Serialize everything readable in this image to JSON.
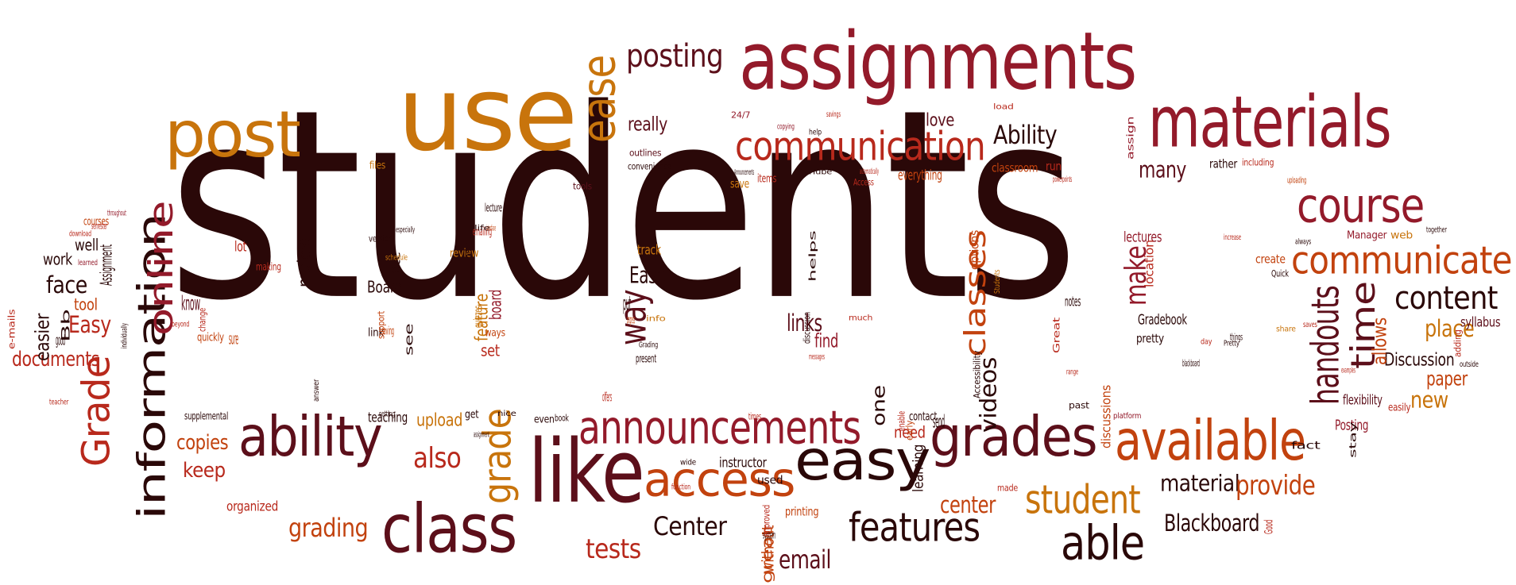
{
  "colors": {
    "dark": "#2a0808",
    "maroon": "#5c0f1a",
    "crimson": "#931a2a",
    "red": "#b8291c",
    "orange": "#c2420e",
    "amber": "#c8740c"
  },
  "words": [
    {
      "t": "students",
      "c": "#2a0808"
    },
    {
      "t": "assignments",
      "c": "#931a2a"
    },
    {
      "t": "use",
      "c": "#c8740c"
    },
    {
      "t": "post",
      "c": "#c8740c"
    },
    {
      "t": "materials",
      "c": "#931a2a"
    },
    {
      "t": "posting",
      "c": "#5c0f1a"
    },
    {
      "t": "ease",
      "c": "#c8740c"
    },
    {
      "t": "communication",
      "c": "#b8291c"
    },
    {
      "t": "course",
      "c": "#931a2a"
    },
    {
      "t": "communicate",
      "c": "#c2420e"
    },
    {
      "t": "content",
      "c": "#2a0808"
    },
    {
      "t": "like",
      "c": "#5c0f1a"
    },
    {
      "t": "class",
      "c": "#5c0f1a"
    },
    {
      "t": "ability",
      "c": "#5c0f1a"
    },
    {
      "t": "announcements",
      "c": "#931a2a"
    },
    {
      "t": "access",
      "c": "#c2420e"
    },
    {
      "t": "easy",
      "c": "#2a0808"
    },
    {
      "t": "grades",
      "c": "#5c0f1a"
    },
    {
      "t": "available",
      "c": "#c2420e"
    },
    {
      "t": "features",
      "c": "#2a0808"
    },
    {
      "t": "able",
      "c": "#2a0808"
    },
    {
      "t": "student",
      "c": "#c8740c"
    },
    {
      "t": "information",
      "c": "#2a0808"
    },
    {
      "t": "online",
      "c": "#931a2a"
    },
    {
      "t": "Grade",
      "c": "#b8291c"
    },
    {
      "t": "grade",
      "c": "#c8740c"
    },
    {
      "t": "handouts",
      "c": "#5c0f1a"
    },
    {
      "t": "time",
      "c": "#5c0f1a"
    },
    {
      "t": "Ability",
      "c": "#2a0808"
    },
    {
      "t": "really",
      "c": "#5c0f1a"
    },
    {
      "t": "many",
      "c": "#5c0f1a"
    },
    {
      "t": "love",
      "c": "#5c0f1a"
    },
    {
      "t": "face",
      "c": "#2a0808"
    },
    {
      "t": "Easy",
      "c": "#b8291c"
    },
    {
      "t": "documents",
      "c": "#b8291c"
    },
    {
      "t": "easier",
      "c": "#2a0808"
    },
    {
      "t": "also",
      "c": "#b8291c"
    },
    {
      "t": "copies",
      "c": "#c2420e"
    },
    {
      "t": "keep",
      "c": "#b8291c"
    },
    {
      "t": "upload",
      "c": "#c8740c"
    },
    {
      "t": "grading",
      "c": "#c2420e"
    },
    {
      "t": "tests",
      "c": "#b8291c"
    },
    {
      "t": "Center",
      "c": "#2a0808"
    },
    {
      "t": "email",
      "c": "#5c0f1a"
    },
    {
      "t": "Blackboard",
      "c": "#2a0808"
    },
    {
      "t": "center",
      "c": "#c2420e"
    },
    {
      "t": "material",
      "c": "#2a0808"
    },
    {
      "t": "provide",
      "c": "#c2420e"
    },
    {
      "t": "place",
      "c": "#c8740c"
    },
    {
      "t": "paper",
      "c": "#c2420e"
    },
    {
      "t": "new",
      "c": "#c8740c"
    },
    {
      "t": "Discussion",
      "c": "#2a0808"
    },
    {
      "t": "way",
      "c": "#5c0f1a"
    },
    {
      "t": "Ease",
      "c": "#2a0808"
    },
    {
      "t": "links",
      "c": "#5c0f1a"
    },
    {
      "t": "find",
      "c": "#931a2a"
    },
    {
      "t": "classes",
      "c": "#c2420e"
    },
    {
      "t": "videos",
      "c": "#2a0808"
    },
    {
      "t": "make",
      "c": "#931a2a"
    },
    {
      "t": "one",
      "c": "#2a0808"
    },
    {
      "t": "need",
      "c": "#b8291c"
    },
    {
      "t": "makes",
      "c": "#2a0808"
    },
    {
      "t": "work",
      "c": "#2a0808"
    },
    {
      "t": "well",
      "c": "#2a0808"
    },
    {
      "t": "tool",
      "c": "#c2420e"
    },
    {
      "t": "Board",
      "c": "#2a0808"
    },
    {
      "t": "allows",
      "c": "#c2420e"
    },
    {
      "t": "everything",
      "c": "#c2420e"
    },
    {
      "t": "Posting",
      "c": "#931a2a"
    },
    {
      "t": "Gradebook",
      "c": "#2a0808"
    },
    {
      "t": "lectures",
      "c": "#931a2a"
    },
    {
      "t": "organized",
      "c": "#b8291c"
    },
    {
      "t": "teaching",
      "c": "#2a0808"
    },
    {
      "t": "instructor",
      "c": "#2a0808"
    },
    {
      "t": "supplemental",
      "c": "#2a0808"
    },
    {
      "t": "syllabus",
      "c": "#5c0f1a"
    },
    {
      "t": "flexibility",
      "c": "#5c0f1a"
    },
    {
      "t": "track",
      "c": "#c8740c"
    },
    {
      "t": "feature",
      "c": "#c8740c"
    },
    {
      "t": "set",
      "c": "#b8291c"
    },
    {
      "t": "printing",
      "c": "#c2420e"
    },
    {
      "t": "without",
      "c": "#c2420e"
    },
    {
      "t": "great",
      "c": "#c2420e"
    },
    {
      "t": "learning",
      "c": "#2a0808"
    },
    {
      "t": "contact",
      "c": "#2a0808"
    },
    {
      "t": "send",
      "c": "#2a0808"
    },
    {
      "t": "discussions",
      "c": "#c2420e"
    },
    {
      "t": "pretty",
      "c": "#2a0808"
    },
    {
      "t": "location",
      "c": "#b8291c"
    },
    {
      "t": "options",
      "c": "#c2420e"
    },
    {
      "t": "create",
      "c": "#c2420e"
    },
    {
      "t": "web",
      "c": "#c8740c"
    },
    {
      "t": "Manager",
      "c": "#931a2a"
    },
    {
      "t": "rather",
      "c": "#2a0808"
    },
    {
      "t": "classroom",
      "c": "#c2420e"
    },
    {
      "t": "run",
      "c": "#b8291c"
    },
    {
      "t": "save",
      "c": "#c8740c"
    },
    {
      "t": "items",
      "c": "#b8291c"
    },
    {
      "t": "Access",
      "c": "#b8291c"
    },
    {
      "t": "convenience",
      "c": "#2a0808"
    },
    {
      "t": "outlines",
      "c": "#5c0f1a"
    },
    {
      "t": "tools",
      "c": "#5c0f1a"
    },
    {
      "t": "files",
      "c": "#c8740c"
    },
    {
      "t": "courses",
      "c": "#c2420e"
    },
    {
      "t": "Assignment",
      "c": "#2a0808"
    },
    {
      "t": "know",
      "c": "#5c0f1a"
    },
    {
      "t": "quickly",
      "c": "#c2420e"
    },
    {
      "t": "lot",
      "c": "#b8291c"
    },
    {
      "t": "making",
      "c": "#b8291c"
    },
    {
      "t": "version",
      "c": "#2a0808"
    },
    {
      "t": "etc",
      "c": "#2a0808"
    },
    {
      "t": "link",
      "c": "#2a0808"
    },
    {
      "t": "saving",
      "c": "#c2420e"
    },
    {
      "t": "see",
      "c": "#2a0808"
    },
    {
      "t": "review",
      "c": "#c8740c"
    },
    {
      "t": "emailing",
      "c": "#b8291c"
    },
    {
      "t": "useful",
      "c": "#2a0808"
    },
    {
      "t": "lecture",
      "c": "#2a0808"
    },
    {
      "t": "board",
      "c": "#931a2a"
    },
    {
      "t": "ways",
      "c": "#c2420e"
    },
    {
      "t": "quizzes",
      "c": "#c8740c"
    },
    {
      "t": "present",
      "c": "#2a0808"
    },
    {
      "t": "book",
      "c": "#2a0808"
    },
    {
      "t": "get",
      "c": "#2a0808"
    },
    {
      "t": "even",
      "c": "#2a0808"
    },
    {
      "t": "used",
      "c": "#2a0808"
    },
    {
      "t": "system",
      "c": "#2a0808"
    },
    {
      "t": "past",
      "c": "#2a0808"
    },
    {
      "t": "made",
      "c": "#b8291c"
    },
    {
      "t": "Good",
      "c": "#b8291c"
    },
    {
      "t": "fact",
      "c": "#2a0808"
    },
    {
      "t": "easily",
      "c": "#b8291c"
    },
    {
      "t": "Great",
      "c": "#b8291c"
    },
    {
      "t": "notes",
      "c": "#2a0808"
    },
    {
      "t": "blackboard",
      "c": "#2a0808"
    },
    {
      "t": "Bb",
      "c": "#2a0808"
    },
    {
      "t": "e-mails",
      "c": "#b8291c"
    },
    {
      "t": "download",
      "c": "#b8291c"
    },
    {
      "t": "semester",
      "c": "#b8291c"
    },
    {
      "t": "throughout",
      "c": "#931a2a"
    },
    {
      "t": "24/7",
      "c": "#931a2a"
    },
    {
      "t": "copying",
      "c": "#931a2a"
    },
    {
      "t": "help",
      "c": "#2a0808"
    },
    {
      "t": "savings",
      "c": "#b8291c"
    },
    {
      "t": "load",
      "c": "#b8291c"
    },
    {
      "t": "assign",
      "c": "#931a2a"
    },
    {
      "t": "including",
      "c": "#b8291c"
    },
    {
      "t": "powerpoints",
      "c": "#b8291c"
    },
    {
      "t": "uploading",
      "c": "#c2420e"
    },
    {
      "t": "together",
      "c": "#2a0808"
    },
    {
      "t": "always",
      "c": "#2a0808"
    },
    {
      "t": "increase",
      "c": "#b8291c"
    },
    {
      "t": "Quick",
      "c": "#2a0808"
    },
    {
      "t": "saves",
      "c": "#b8291c"
    },
    {
      "t": "share",
      "c": "#c8740c"
    },
    {
      "t": "adding",
      "c": "#b8291c"
    },
    {
      "t": "outside",
      "c": "#2a0808"
    },
    {
      "t": "examples",
      "c": "#b8291c"
    },
    {
      "t": "Pretty",
      "c": "#2a0808"
    },
    {
      "t": "things",
      "c": "#2a0808"
    },
    {
      "t": "range",
      "c": "#b8291c"
    },
    {
      "t": "day",
      "c": "#b8291c"
    },
    {
      "t": "stay",
      "c": "#2a0808"
    },
    {
      "t": "platform",
      "c": "#931a2a"
    },
    {
      "t": "Accessibility",
      "c": "#2a0808"
    },
    {
      "t": "Students",
      "c": "#c8740c"
    },
    {
      "t": "enable",
      "c": "#b8291c"
    },
    {
      "t": "times",
      "c": "#b8291c"
    },
    {
      "t": "helps",
      "c": "#2a0808"
    },
    {
      "t": "discussion",
      "c": "#2a0808"
    },
    {
      "t": "messages",
      "c": "#b8291c"
    },
    {
      "t": "much",
      "c": "#b8291c"
    },
    {
      "t": "automatically",
      "c": "#b8291c"
    },
    {
      "t": "YouTube",
      "c": "#2a0808"
    },
    {
      "t": "Announcements",
      "c": "#2a0808"
    },
    {
      "t": "Grading",
      "c": "#2a0808"
    },
    {
      "t": "progress",
      "c": "#c2420e"
    },
    {
      "t": "put",
      "c": "#2a0808"
    },
    {
      "t": "info",
      "c": "#c8740c"
    },
    {
      "t": "schedule",
      "c": "#c8740c"
    },
    {
      "t": "especially",
      "c": "#2a0808"
    },
    {
      "t": "support",
      "c": "#c2420e"
    },
    {
      "t": "setting",
      "c": "#2a0808"
    },
    {
      "t": "offers",
      "c": "#b8291c"
    },
    {
      "t": "nice",
      "c": "#2a0808"
    },
    {
      "t": "interface",
      "c": "#c2420e"
    },
    {
      "t": "life",
      "c": "#2a0808"
    },
    {
      "t": "assignment",
      "c": "#2a0808"
    },
    {
      "t": "wide",
      "c": "#2a0808"
    },
    {
      "t": "function",
      "c": "#b8291c"
    },
    {
      "t": "improved",
      "c": "#b8291c"
    },
    {
      "t": "early",
      "c": "#c2420e"
    },
    {
      "t": "sure",
      "c": "#c2420e"
    },
    {
      "t": "change",
      "c": "#b8291c"
    },
    {
      "t": "beyond",
      "c": "#b8291c"
    },
    {
      "t": "individually",
      "c": "#2a0808"
    },
    {
      "t": "good",
      "c": "#2a0808"
    },
    {
      "t": "learned",
      "c": "#931a2a"
    },
    {
      "t": "teacher",
      "c": "#b8291c"
    },
    {
      "t": "answer",
      "c": "#2a0808"
    }
  ]
}
